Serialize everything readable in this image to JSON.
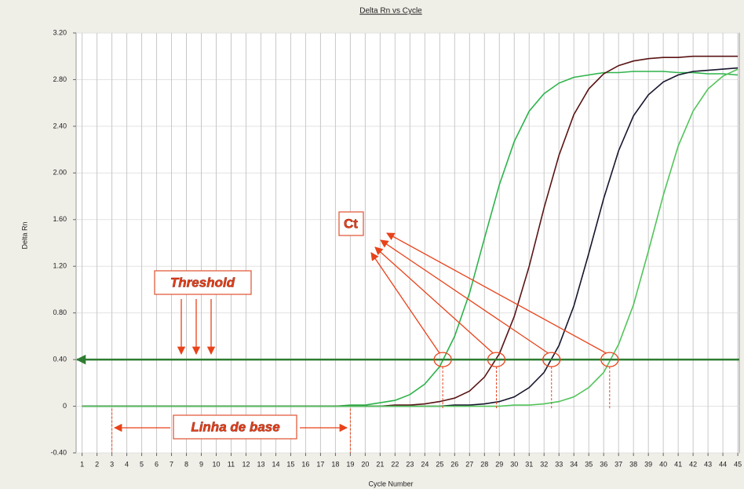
{
  "chart_data": {
    "type": "line",
    "title": "Delta Rn vs Cycle",
    "x_label": "Cycle Number",
    "y_label": "Delta Rn",
    "x": [
      1,
      2,
      3,
      4,
      5,
      6,
      7,
      8,
      9,
      10,
      11,
      12,
      13,
      14,
      15,
      16,
      17,
      18,
      19,
      20,
      21,
      22,
      23,
      24,
      25,
      26,
      27,
      28,
      29,
      30,
      31,
      32,
      33,
      34,
      35,
      36,
      37,
      38,
      39,
      40,
      41,
      42,
      43,
      44,
      45
    ],
    "xlim": [
      0.6,
      45.1
    ],
    "xticks": [
      1,
      2,
      3,
      4,
      5,
      6,
      7,
      8,
      9,
      10,
      11,
      12,
      13,
      14,
      15,
      16,
      17,
      18,
      19,
      20,
      21,
      22,
      23,
      24,
      25,
      26,
      27,
      28,
      29,
      30,
      31,
      32,
      33,
      34,
      35,
      36,
      37,
      38,
      39,
      40,
      41,
      42,
      43,
      44,
      45
    ],
    "ylim": [
      -0.4,
      3.2
    ],
    "yticks": [
      {
        "value": -0.4,
        "label": "-0.40"
      },
      0,
      {
        "value": 0.4,
        "label": "0.40"
      },
      {
        "value": 0.8,
        "label": "0.80"
      },
      {
        "value": 1.2,
        "label": "1.20"
      },
      {
        "value": 1.6,
        "label": "1.60"
      },
      {
        "value": 2.0,
        "label": "2.00"
      },
      {
        "value": 2.4,
        "label": "2.40"
      },
      {
        "value": 2.8,
        "label": "2.80"
      },
      {
        "value": 3.2,
        "label": "3.20"
      }
    ],
    "grid": true,
    "series": [
      {
        "color": "#2db34a",
        "values": [
          0,
          0,
          0,
          0,
          0,
          0,
          0,
          0,
          0,
          0,
          0,
          0,
          0,
          0,
          0,
          0,
          0,
          0,
          0.01,
          0.01,
          0.03,
          0.05,
          0.1,
          0.19,
          0.34,
          0.6,
          0.97,
          1.44,
          1.9,
          2.27,
          2.53,
          2.68,
          2.77,
          2.82,
          2.84,
          2.86,
          2.86,
          2.87,
          2.87,
          2.87,
          2.86,
          2.86,
          2.85,
          2.85,
          2.84
        ]
      },
      {
        "color": "#5a1414",
        "values": [
          0,
          0,
          0,
          0,
          0,
          0,
          0,
          0,
          0,
          0,
          0,
          0,
          0,
          0,
          0,
          0,
          0,
          0,
          0,
          0,
          0,
          0.01,
          0.01,
          0.02,
          0.04,
          0.07,
          0.13,
          0.25,
          0.45,
          0.77,
          1.2,
          1.7,
          2.15,
          2.5,
          2.72,
          2.85,
          2.92,
          2.96,
          2.98,
          2.99,
          2.99,
          3.0,
          3.0,
          3.0,
          3.0
        ]
      },
      {
        "color": "#16162e",
        "values": [
          0,
          0,
          0,
          0,
          0,
          0,
          0,
          0,
          0,
          0,
          0,
          0,
          0,
          0,
          0,
          0,
          0,
          0,
          0,
          0,
          0,
          0,
          0,
          0,
          0,
          0.01,
          0.01,
          0.02,
          0.04,
          0.08,
          0.16,
          0.29,
          0.52,
          0.86,
          1.31,
          1.78,
          2.19,
          2.49,
          2.67,
          2.78,
          2.84,
          2.87,
          2.88,
          2.89,
          2.9
        ]
      },
      {
        "color": "#52c45a",
        "values": [
          0,
          0,
          0,
          0,
          0,
          0,
          0,
          0,
          0,
          0,
          0,
          0,
          0,
          0,
          0,
          0,
          0,
          0,
          0,
          0,
          0,
          0,
          0,
          0,
          0,
          0,
          0,
          0,
          0,
          0.01,
          0.01,
          0.02,
          0.04,
          0.08,
          0.16,
          0.29,
          0.53,
          0.87,
          1.33,
          1.81,
          2.23,
          2.53,
          2.72,
          2.83,
          2.89
        ]
      }
    ],
    "threshold": 0.4,
    "threshold_color": "#2e7d32",
    "ct_values": [
      25.2,
      28.8,
      32.5,
      36.4
    ],
    "baseline_range": [
      3,
      19
    ],
    "annotations": {
      "threshold": "Threshold",
      "ct": "Ct",
      "baseline": "Linha de base"
    }
  }
}
